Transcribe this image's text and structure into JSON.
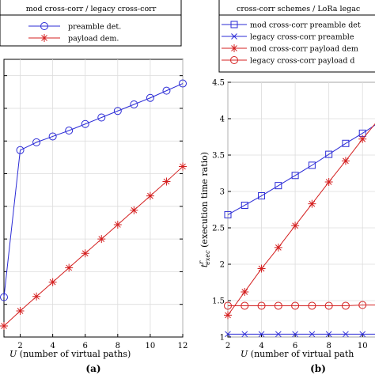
{
  "chart_data": [
    {
      "type": "line",
      "panel_label": "(a)",
      "xlabel_symbol": "U",
      "xlabel_rest": " (number of virtual paths)",
      "ylabel": "",
      "xlim": [
        1,
        12
      ],
      "x_ticks": [
        "2",
        "4",
        "6",
        "8",
        "10",
        "12"
      ],
      "grid": true,
      "legend": {
        "title": "mod cross-corr / legacy cross-corr",
        "placement": "top",
        "entries": [
          "preamble det.",
          "payload dem."
        ]
      },
      "x": [
        1,
        2,
        3,
        4,
        5,
        6,
        7,
        8,
        9,
        10,
        11,
        12
      ],
      "series": [
        {
          "name": "preamble det.",
          "color": "#2b2bd6",
          "marker": "circle",
          "values": [
            1.11,
            3.36,
            3.48,
            3.57,
            3.66,
            3.76,
            3.86,
            3.96,
            4.06,
            4.16,
            4.27,
            4.38
          ]
        },
        {
          "name": "payload dem.",
          "color": "#d42020",
          "marker": "star",
          "values": [
            0.67,
            0.9,
            1.12,
            1.34,
            1.56,
            1.78,
            2.0,
            2.22,
            2.44,
            2.66,
            2.88,
            3.11
          ]
        }
      ]
    },
    {
      "type": "line",
      "panel_label": "(b)",
      "xlabel_symbol": "U",
      "xlabel_rest": " (number of virtual path",
      "ylabel_symbol": "t",
      "ylabel_sup": "r",
      "ylabel_sub": "exec",
      "ylabel_rest": " (execution time ratio)",
      "ylim": [
        1,
        4.5
      ],
      "y_ticks": [
        "1",
        "1.5",
        "2",
        "2.5",
        "3",
        "3.5",
        "4",
        "4.5"
      ],
      "x_ticks": [
        "2",
        "4",
        "6",
        "8",
        "10"
      ],
      "grid": true,
      "legend": {
        "title": "cross-corr schemes / LoRa legac",
        "placement": "top",
        "entries": [
          "mod cross-corr preamble det",
          "legacy cross-corr preamble",
          "mod cross-corr payload dem",
          "legacy cross-corr payload d"
        ]
      },
      "x": [
        2,
        3,
        4,
        5,
        6,
        7,
        8,
        9,
        10,
        11
      ],
      "series": [
        {
          "name": "mod cross-corr preamble det",
          "color": "#2b2bd6",
          "marker": "square",
          "values": [
            2.68,
            2.81,
            2.94,
            3.08,
            3.22,
            3.36,
            3.51,
            3.66,
            3.8,
            3.95
          ]
        },
        {
          "name": "legacy cross-corr preamble",
          "color": "#2b2bd6",
          "marker": "x",
          "values": [
            1.04,
            1.04,
            1.04,
            1.04,
            1.04,
            1.04,
            1.04,
            1.04,
            1.04,
            1.04
          ]
        },
        {
          "name": "mod cross-corr payload dem",
          "color": "#d42020",
          "marker": "star",
          "values": [
            1.3,
            1.62,
            1.94,
            2.23,
            2.53,
            2.83,
            3.13,
            3.42,
            3.72,
            4.0
          ]
        },
        {
          "name": "legacy cross-corr payload d",
          "color": "#d42020",
          "marker": "circle",
          "values": [
            1.43,
            1.43,
            1.43,
            1.43,
            1.43,
            1.43,
            1.43,
            1.43,
            1.44,
            1.44
          ]
        }
      ]
    }
  ]
}
